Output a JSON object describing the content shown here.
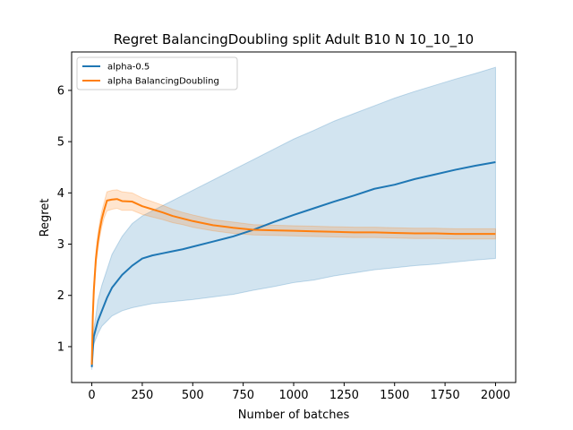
{
  "chart_data": {
    "type": "line",
    "title": "Regret BalancingDoubling split Adult B10 N 10_10_10",
    "xlabel": "Number of batches",
    "ylabel": "Regret",
    "xlim": [
      -100,
      2100
    ],
    "ylim": [
      0.3,
      6.75
    ],
    "xticks": [
      0,
      250,
      500,
      750,
      1000,
      1250,
      1500,
      1750,
      2000
    ],
    "yticks": [
      1,
      2,
      3,
      4,
      5,
      6
    ],
    "grid": false,
    "legend_position": "upper-left",
    "series": [
      {
        "name": "alpha-0.5",
        "color": "#1f77b4",
        "x": [
          0,
          5,
          10,
          20,
          30,
          50,
          75,
          100,
          150,
          200,
          250,
          300,
          350,
          400,
          450,
          500,
          600,
          700,
          800,
          900,
          1000,
          1100,
          1200,
          1300,
          1400,
          1500,
          1600,
          1700,
          1800,
          1900,
          2000
        ],
        "y": [
          0.6,
          0.95,
          1.2,
          1.35,
          1.5,
          1.7,
          1.95,
          2.15,
          2.4,
          2.58,
          2.72,
          2.78,
          2.82,
          2.86,
          2.9,
          2.95,
          3.05,
          3.15,
          3.28,
          3.43,
          3.57,
          3.7,
          3.83,
          3.95,
          4.08,
          4.16,
          4.27,
          4.36,
          4.45,
          4.53,
          4.6
        ],
        "lower": [
          0.55,
          0.85,
          1.05,
          1.15,
          1.25,
          1.4,
          1.5,
          1.6,
          1.7,
          1.76,
          1.8,
          1.84,
          1.86,
          1.88,
          1.9,
          1.92,
          1.97,
          2.02,
          2.1,
          2.17,
          2.25,
          2.3,
          2.38,
          2.44,
          2.5,
          2.54,
          2.58,
          2.61,
          2.65,
          2.69,
          2.72
        ],
        "upper": [
          0.65,
          1.05,
          1.35,
          1.6,
          1.9,
          2.2,
          2.5,
          2.8,
          3.15,
          3.4,
          3.55,
          3.65,
          3.75,
          3.85,
          3.95,
          4.05,
          4.25,
          4.45,
          4.65,
          4.85,
          5.05,
          5.22,
          5.4,
          5.55,
          5.7,
          5.85,
          5.98,
          6.1,
          6.22,
          6.33,
          6.45
        ]
      },
      {
        "name": "alpha BalancingDoubling",
        "color": "#ff7f0e",
        "x": [
          0,
          5,
          10,
          20,
          30,
          40,
          50,
          60,
          75,
          100,
          125,
          150,
          200,
          250,
          300,
          350,
          400,
          450,
          500,
          600,
          700,
          800,
          900,
          1000,
          1100,
          1200,
          1300,
          1400,
          1500,
          1600,
          1700,
          1800,
          1900,
          2000
        ],
        "y": [
          0.65,
          1.6,
          2.1,
          2.7,
          3.05,
          3.3,
          3.5,
          3.65,
          3.85,
          3.87,
          3.88,
          3.84,
          3.83,
          3.74,
          3.68,
          3.62,
          3.55,
          3.5,
          3.45,
          3.37,
          3.32,
          3.28,
          3.27,
          3.26,
          3.25,
          3.24,
          3.23,
          3.23,
          3.22,
          3.21,
          3.21,
          3.2,
          3.2,
          3.2
        ],
        "lower": [
          0.6,
          1.4,
          1.95,
          2.55,
          2.9,
          3.15,
          3.35,
          3.5,
          3.65,
          3.68,
          3.7,
          3.66,
          3.66,
          3.58,
          3.53,
          3.48,
          3.42,
          3.38,
          3.33,
          3.26,
          3.21,
          3.18,
          3.17,
          3.16,
          3.15,
          3.14,
          3.13,
          3.13,
          3.12,
          3.11,
          3.11,
          3.1,
          3.1,
          3.1
        ],
        "upper": [
          0.7,
          1.8,
          2.25,
          2.85,
          3.2,
          3.45,
          3.65,
          3.8,
          4.02,
          4.05,
          4.06,
          4.02,
          4.0,
          3.9,
          3.83,
          3.76,
          3.68,
          3.62,
          3.57,
          3.48,
          3.43,
          3.38,
          3.37,
          3.36,
          3.35,
          3.34,
          3.33,
          3.33,
          3.32,
          3.31,
          3.31,
          3.3,
          3.3,
          3.3
        ]
      }
    ]
  }
}
